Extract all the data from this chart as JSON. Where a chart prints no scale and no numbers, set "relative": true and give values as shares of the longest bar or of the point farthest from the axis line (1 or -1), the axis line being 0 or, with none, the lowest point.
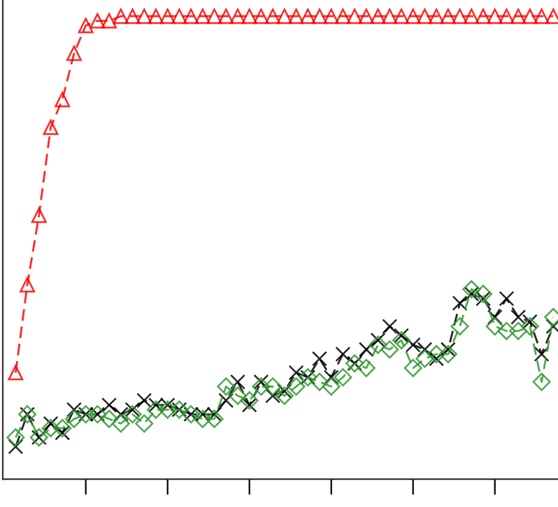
{
  "chart_data": {
    "type": "line",
    "relative": true,
    "line_style": "dashed",
    "grid": false,
    "legend": false,
    "tick_labels": false,
    "categories": [
      null,
      null,
      null,
      null,
      null,
      null,
      null,
      null,
      null,
      null,
      null,
      null,
      null,
      null,
      null,
      null,
      null,
      null,
      null,
      null,
      null,
      null,
      null,
      null,
      null,
      null,
      null,
      null,
      null,
      null,
      null,
      null,
      null,
      null,
      null,
      null,
      null,
      null,
      null,
      null,
      null,
      null,
      null,
      null,
      null,
      null,
      null
    ],
    "series": [
      {
        "color": "#ff0000",
        "marker": "triangle",
        "values": [
          0.23,
          0.42,
          0.57,
          0.76,
          0.82,
          0.92,
          0.98,
          0.99,
          0.99,
          1,
          1,
          1,
          1,
          1,
          1,
          1,
          1,
          1,
          1,
          1,
          1,
          1,
          1,
          1,
          1,
          1,
          1,
          1,
          1,
          1,
          1,
          1,
          1,
          1,
          1,
          1,
          1,
          1,
          1,
          1,
          1,
          1,
          1,
          1,
          1,
          1,
          1
        ]
      },
      {
        "color": "#000000",
        "marker": "cross",
        "values": [
          0.07,
          0.14,
          0.09,
          0.12,
          0.1,
          0.15,
          0.14,
          0.14,
          0.16,
          0.14,
          0.15,
          0.17,
          0.16,
          0.16,
          0.15,
          0.14,
          0.14,
          0.14,
          0.17,
          0.21,
          0.16,
          0.21,
          0.18,
          0.19,
          0.23,
          0.22,
          0.26,
          0.22,
          0.27,
          0.25,
          0.28,
          0.3,
          0.33,
          0.31,
          0.29,
          0.28,
          0.26,
          0.28,
          0.38,
          0.4,
          0.39,
          0.35,
          0.39,
          0.35,
          0.34,
          0.27,
          0.33
        ]
      },
      {
        "color": "#339933",
        "marker": "diamond",
        "values": [
          0.09,
          0.14,
          0.09,
          0.11,
          0.11,
          0.13,
          0.14,
          0.14,
          0.13,
          0.12,
          0.14,
          0.12,
          0.15,
          0.15,
          0.15,
          0.14,
          0.13,
          0.13,
          0.2,
          0.18,
          0.17,
          0.2,
          0.2,
          0.18,
          0.2,
          0.22,
          0.21,
          0.2,
          0.22,
          0.25,
          0.24,
          0.29,
          0.28,
          0.3,
          0.24,
          0.26,
          0.27,
          0.27,
          0.33,
          0.41,
          0.4,
          0.33,
          0.32,
          0.32,
          0.33,
          0.21,
          0.35
        ]
      }
    ]
  }
}
